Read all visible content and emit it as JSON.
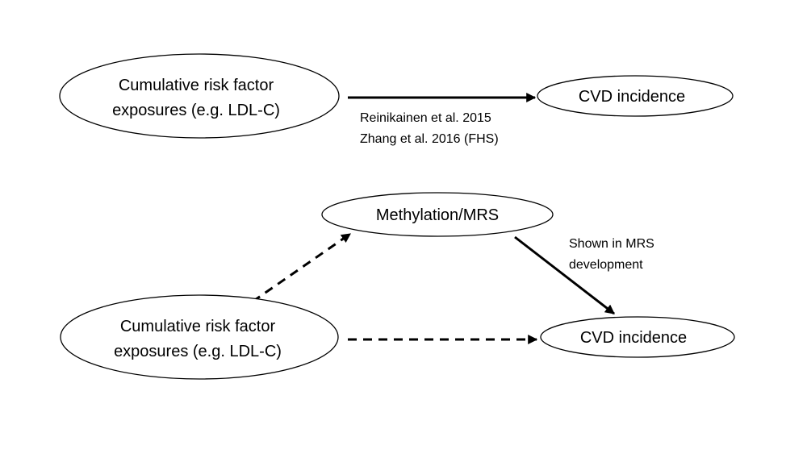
{
  "top": {
    "source": {
      "line1": "Cumulative risk factor",
      "line2": "exposures (e.g. LDL-C)"
    },
    "target": {
      "label": "CVD incidence"
    },
    "edge": {
      "style": "solid",
      "citation1": "Reinikainen et al. 2015",
      "citation2": "Zhang et al. 2016 (FHS)"
    }
  },
  "bottom": {
    "source": {
      "line1": "Cumulative risk factor",
      "line2": "exposures (e.g. LDL-C)"
    },
    "mediator": {
      "label": "Methylation/MRS"
    },
    "target": {
      "label": "CVD incidence"
    },
    "edge_mediator_target": {
      "style": "solid",
      "note1": "Shown in MRS",
      "note2": "development"
    },
    "edge_source_mediator": {
      "style": "dashed"
    },
    "edge_source_target": {
      "style": "dashed"
    }
  },
  "colors": {
    "stroke": "#000000",
    "background": "#ffffff"
  }
}
